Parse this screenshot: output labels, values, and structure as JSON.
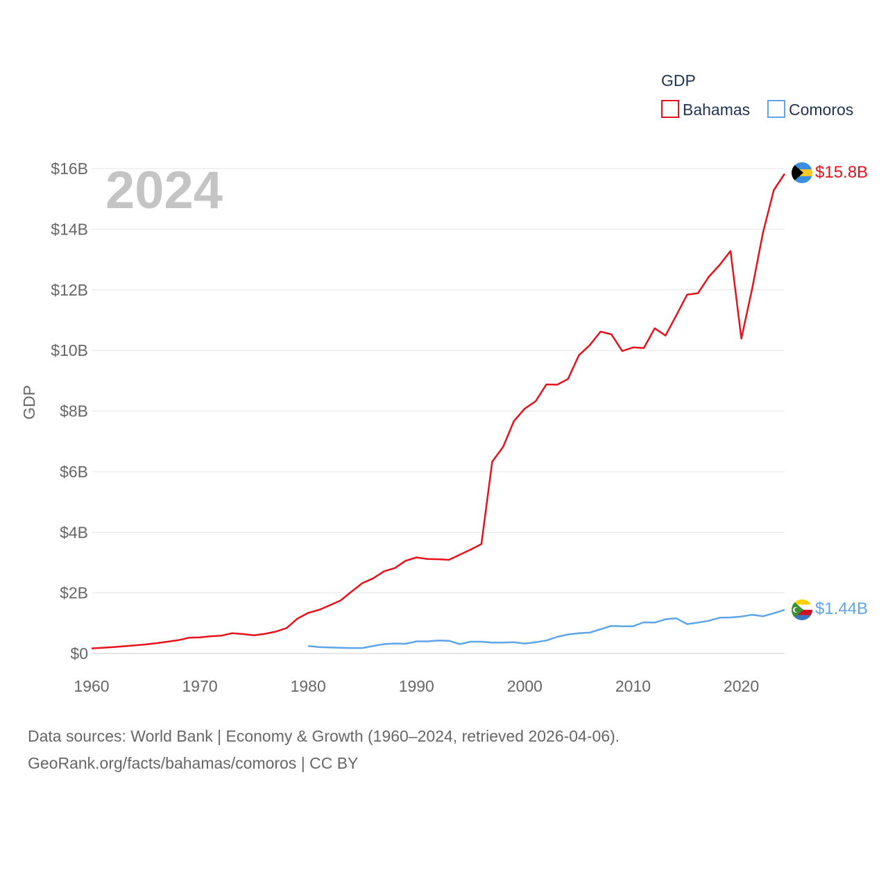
{
  "chart_data": {
    "type": "line",
    "ylabel": "GDP",
    "xlabel": "",
    "legend": {
      "title": "GDP",
      "placement": "top-right"
    },
    "year_display": "2024",
    "xlim": [
      1960,
      2024
    ],
    "ylim": [
      0,
      16000000000
    ],
    "x_ticks": [
      1960,
      1970,
      1980,
      1990,
      2000,
      2010,
      2020
    ],
    "y_ticks": [
      {
        "value": 0,
        "label": "$0"
      },
      {
        "value": 2000000000,
        "label": "$2B"
      },
      {
        "value": 4000000000,
        "label": "$4B"
      },
      {
        "value": 6000000000,
        "label": "$6B"
      },
      {
        "value": 8000000000,
        "label": "$8B"
      },
      {
        "value": 10000000000,
        "label": "$10B"
      },
      {
        "value": 12000000000,
        "label": "$12B"
      },
      {
        "value": 14000000000,
        "label": "$14B"
      },
      {
        "value": 16000000000,
        "label": "$16B"
      }
    ],
    "series": [
      {
        "name": "Bahamas",
        "color": "#e8101a",
        "end_label": "$15.8B",
        "flag": "bahamas-flag-icon",
        "x": [
          1960,
          1961,
          1962,
          1963,
          1964,
          1965,
          1966,
          1967,
          1968,
          1969,
          1970,
          1971,
          1972,
          1973,
          1974,
          1975,
          1976,
          1977,
          1978,
          1979,
          1980,
          1981,
          1982,
          1983,
          1984,
          1985,
          1986,
          1987,
          1988,
          1989,
          1990,
          1991,
          1992,
          1993,
          1994,
          1995,
          1996,
          1997,
          1998,
          1999,
          2000,
          2001,
          2002,
          2003,
          2004,
          2005,
          2006,
          2007,
          2008,
          2009,
          2010,
          2011,
          2012,
          2013,
          2014,
          2015,
          2016,
          2017,
          2018,
          2019,
          2020,
          2021,
          2022,
          2023,
          2024
        ],
        "y": [
          0.17,
          0.19,
          0.21,
          0.24,
          0.27,
          0.3,
          0.34,
          0.39,
          0.44,
          0.52,
          0.53,
          0.57,
          0.59,
          0.67,
          0.64,
          0.6,
          0.65,
          0.72,
          0.84,
          1.15,
          1.34,
          1.44,
          1.59,
          1.75,
          2.04,
          2.32,
          2.48,
          2.71,
          2.82,
          3.06,
          3.17,
          3.12,
          3.11,
          3.09,
          3.26,
          3.43,
          3.61,
          6.33,
          6.82,
          7.67,
          8.08,
          8.32,
          8.88,
          8.87,
          9.06,
          9.84,
          10.17,
          10.62,
          10.53,
          9.98,
          10.1,
          10.08,
          10.73,
          10.49,
          11.16,
          11.84,
          11.89,
          12.43,
          12.82,
          13.28,
          10.39,
          12.04,
          13.89,
          15.29,
          15.83
        ]
      },
      {
        "name": "Comoros",
        "color": "#5ea5e8",
        "end_label": "$1.44B",
        "flag": "comoros-flag-icon",
        "x": [
          1980,
          1981,
          1982,
          1983,
          1984,
          1985,
          1986,
          1987,
          1988,
          1989,
          1990,
          1991,
          1992,
          1993,
          1994,
          1995,
          1996,
          1997,
          1998,
          1999,
          2000,
          2001,
          2002,
          2003,
          2004,
          2005,
          2006,
          2007,
          2008,
          2009,
          2010,
          2011,
          2012,
          2013,
          2014,
          2015,
          2016,
          2017,
          2018,
          2019,
          2020,
          2021,
          2022,
          2023,
          2024
        ],
        "y": [
          0.25,
          0.21,
          0.2,
          0.19,
          0.18,
          0.18,
          0.25,
          0.31,
          0.33,
          0.32,
          0.4,
          0.4,
          0.43,
          0.42,
          0.31,
          0.39,
          0.39,
          0.36,
          0.36,
          0.37,
          0.33,
          0.37,
          0.43,
          0.55,
          0.63,
          0.67,
          0.69,
          0.8,
          0.91,
          0.9,
          0.9,
          1.03,
          1.02,
          1.13,
          1.16,
          0.97,
          1.02,
          1.08,
          1.18,
          1.19,
          1.22,
          1.28,
          1.23,
          1.33,
          1.44
        ]
      }
    ],
    "y_units": "billions of US dollars"
  },
  "footer": {
    "line1": "Data sources: World Bank | Economy & Growth (1960–2024, retrieved 2026-04-06).",
    "line2": "GeoRank.org/facts/bahamas/comoros | CC BY"
  }
}
